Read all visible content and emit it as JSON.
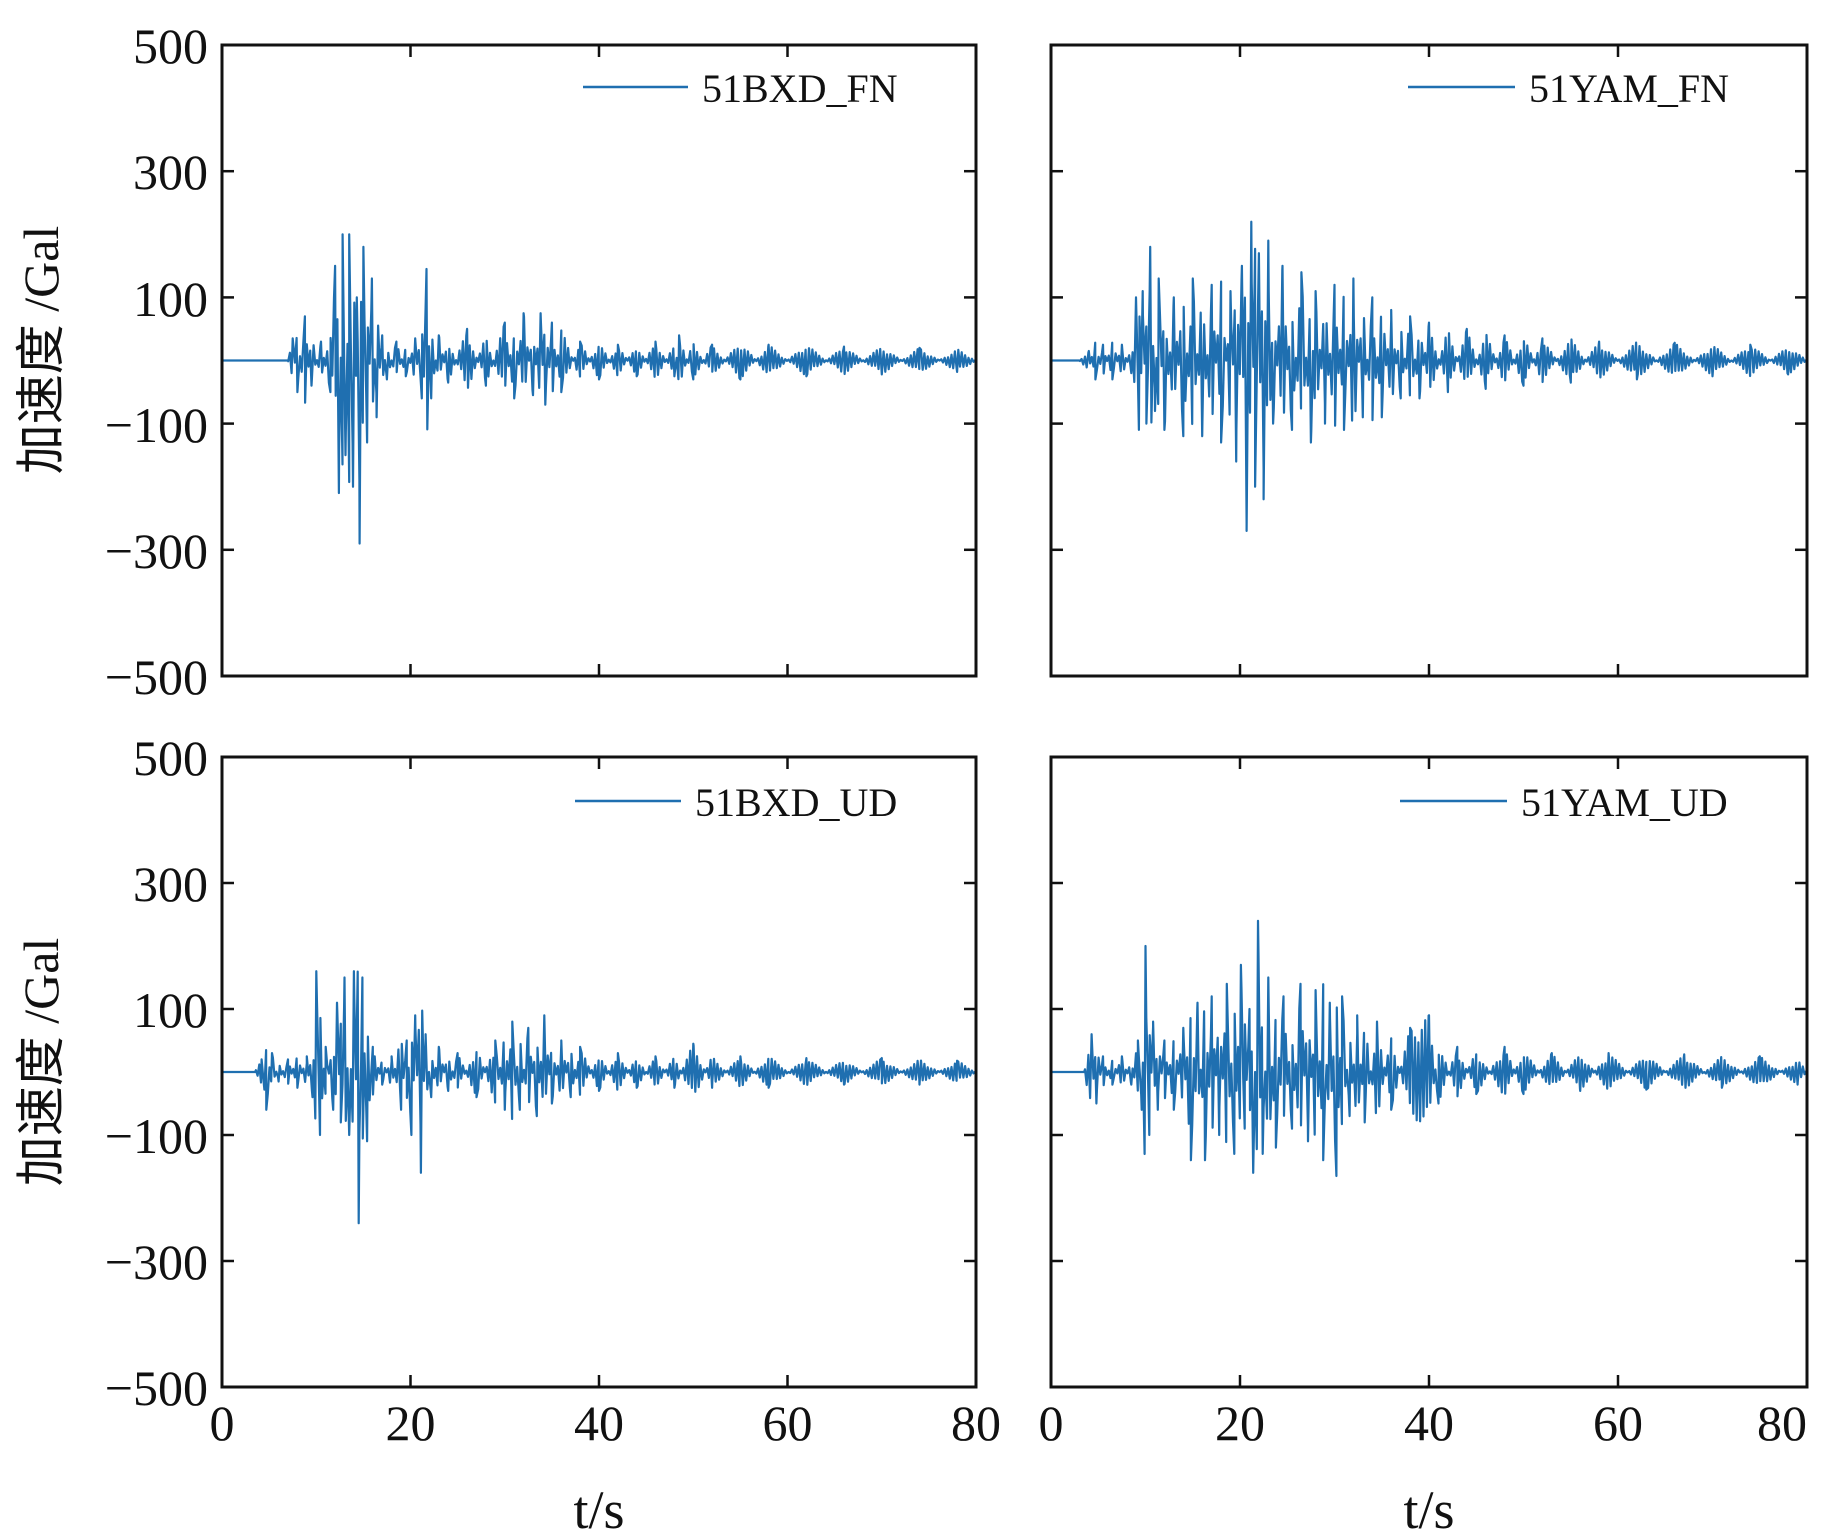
{
  "chart_data": [
    {
      "type": "line",
      "panel": "top-left",
      "series": [
        {
          "name": "51BXD_FN",
          "color": "#1f6fb0"
        }
      ],
      "legend": "top-right",
      "xlim": [
        0,
        80
      ],
      "ylim": [
        -500,
        500
      ],
      "xticks": [
        0,
        20,
        40,
        60,
        80
      ],
      "xticklabels": [],
      "yticks": [
        500,
        300,
        100,
        -100,
        -300,
        -500
      ],
      "yticklabels": [
        "500",
        "300",
        "100",
        "−100",
        "−300",
        "−500"
      ],
      "ylabel": "加速度 /Gal",
      "xlabel": "",
      "grid": false,
      "key_points": [
        [
          0,
          0
        ],
        [
          7,
          0
        ],
        [
          7.5,
          35
        ],
        [
          8,
          -50
        ],
        [
          8.8,
          70
        ],
        [
          9.5,
          -40
        ],
        [
          10.5,
          30
        ],
        [
          11.5,
          -50
        ],
        [
          12,
          150
        ],
        [
          12.4,
          -210
        ],
        [
          12.8,
          200
        ],
        [
          13.1,
          -150
        ],
        [
          13.5,
          200
        ],
        [
          13.9,
          -200
        ],
        [
          14.3,
          100
        ],
        [
          14.6,
          -290
        ],
        [
          15,
          180
        ],
        [
          15.4,
          -130
        ],
        [
          15.9,
          130
        ],
        [
          16.4,
          -90
        ],
        [
          17,
          40
        ],
        [
          17.5,
          -30
        ],
        [
          18.5,
          30
        ],
        [
          19.5,
          -25
        ],
        [
          20.5,
          35
        ],
        [
          21.2,
          -60
        ],
        [
          21.7,
          145
        ],
        [
          22.2,
          -60
        ],
        [
          23,
          40
        ],
        [
          24,
          -35
        ],
        [
          26,
          50
        ],
        [
          28,
          -40
        ],
        [
          30,
          60
        ],
        [
          31,
          -60
        ],
        [
          32,
          75
        ],
        [
          33,
          -55
        ],
        [
          33.8,
          75
        ],
        [
          34.3,
          -70
        ],
        [
          35,
          60
        ],
        [
          36,
          -50
        ],
        [
          38,
          30
        ],
        [
          40,
          -30
        ],
        [
          42,
          25
        ],
        [
          44,
          -25
        ],
        [
          46,
          30
        ],
        [
          48,
          -25
        ],
        [
          48.5,
          40
        ],
        [
          50,
          -30
        ],
        [
          52,
          25
        ],
        [
          55,
          -30
        ],
        [
          58,
          25
        ],
        [
          62,
          -25
        ],
        [
          66,
          22
        ],
        [
          70,
          -22
        ],
        [
          74,
          20
        ],
        [
          78,
          -18
        ],
        [
          80,
          0
        ]
      ]
    },
    {
      "type": "line",
      "panel": "top-right",
      "series": [
        {
          "name": "51YAM_FN",
          "color": "#1f6fb0"
        }
      ],
      "legend": "top-right",
      "xlim": [
        0,
        80
      ],
      "ylim": [
        -500,
        500
      ],
      "xticks": [
        0,
        20,
        40,
        60,
        80
      ],
      "xticklabels": [],
      "yticks": [
        500,
        300,
        100,
        -100,
        -300,
        -500
      ],
      "yticklabels": [],
      "xlabel": "",
      "grid": false,
      "key_points": [
        [
          0,
          0
        ],
        [
          3,
          0
        ],
        [
          4,
          15
        ],
        [
          4.7,
          -30
        ],
        [
          5.5,
          25
        ],
        [
          6.5,
          -30
        ],
        [
          7.5,
          25
        ],
        [
          8.5,
          -20
        ],
        [
          9,
          100
        ],
        [
          9.3,
          -110
        ],
        [
          9.7,
          110
        ],
        [
          10.1,
          -100
        ],
        [
          10.5,
          180
        ],
        [
          11,
          -80
        ],
        [
          11.4,
          130
        ],
        [
          12,
          -110
        ],
        [
          13,
          100
        ],
        [
          14,
          -120
        ],
        [
          15,
          130
        ],
        [
          16,
          -120
        ],
        [
          17,
          120
        ],
        [
          18,
          -130
        ],
        [
          19,
          110
        ],
        [
          19.6,
          -160
        ],
        [
          20.2,
          150
        ],
        [
          20.7,
          -270
        ],
        [
          21.2,
          220
        ],
        [
          21.6,
          -200
        ],
        [
          22,
          170
        ],
        [
          22.5,
          -220
        ],
        [
          23,
          190
        ],
        [
          23.5,
          -100
        ],
        [
          24.5,
          150
        ],
        [
          25.5,
          -110
        ],
        [
          26.5,
          140
        ],
        [
          27.5,
          -130
        ],
        [
          28,
          110
        ],
        [
          29,
          -100
        ],
        [
          30,
          120
        ],
        [
          31,
          -110
        ],
        [
          32,
          130
        ],
        [
          33,
          -90
        ],
        [
          34,
          100
        ],
        [
          35,
          -90
        ],
        [
          36,
          80
        ],
        [
          37,
          -60
        ],
        [
          38,
          70
        ],
        [
          39,
          -60
        ],
        [
          40,
          60
        ],
        [
          42,
          -50
        ],
        [
          44,
          50
        ],
        [
          46,
          -45
        ],
        [
          48,
          40
        ],
        [
          50,
          -40
        ],
        [
          52,
          35
        ],
        [
          55,
          -35
        ],
        [
          58,
          30
        ],
        [
          62,
          -30
        ],
        [
          66,
          28
        ],
        [
          70,
          -25
        ],
        [
          74,
          25
        ],
        [
          78,
          -22
        ],
        [
          80,
          0
        ]
      ]
    },
    {
      "type": "line",
      "panel": "bottom-left",
      "series": [
        {
          "name": "51BXD_UD",
          "color": "#1f6fb0"
        }
      ],
      "legend": "top-right",
      "xlim": [
        0,
        80
      ],
      "ylim": [
        -500,
        500
      ],
      "xticks": [
        0,
        20,
        40,
        60,
        80
      ],
      "xticklabels": [
        "0",
        "20",
        "40",
        "60",
        "80"
      ],
      "yticks": [
        500,
        300,
        100,
        -100,
        -300,
        -500
      ],
      "yticklabels": [
        "500",
        "300",
        "100",
        "−100",
        "−300",
        "−500"
      ],
      "ylabel": "加速度 /Gal",
      "xlabel": "t/s",
      "grid": false,
      "key_points": [
        [
          0,
          0
        ],
        [
          3.5,
          0
        ],
        [
          4.2,
          20
        ],
        [
          4.7,
          -60
        ],
        [
          5.3,
          30
        ],
        [
          6,
          -15
        ],
        [
          7,
          20
        ],
        [
          8,
          -25
        ],
        [
          9,
          25
        ],
        [
          9.6,
          -40
        ],
        [
          10,
          160
        ],
        [
          10.4,
          -100
        ],
        [
          11,
          40
        ],
        [
          11.8,
          -60
        ],
        [
          12.2,
          110
        ],
        [
          12.6,
          -80
        ],
        [
          13,
          150
        ],
        [
          13.5,
          -100
        ],
        [
          14,
          160
        ],
        [
          14.5,
          -240
        ],
        [
          14.9,
          150
        ],
        [
          15.4,
          -110
        ],
        [
          16,
          40
        ],
        [
          17,
          -20
        ],
        [
          18,
          25
        ],
        [
          19,
          -60
        ],
        [
          19.6,
          50
        ],
        [
          20.1,
          -100
        ],
        [
          20.5,
          90
        ],
        [
          21.1,
          -160
        ],
        [
          21.6,
          60
        ],
        [
          22.2,
          -40
        ],
        [
          23,
          40
        ],
        [
          24,
          -30
        ],
        [
          25,
          30
        ],
        [
          27,
          -40
        ],
        [
          29,
          50
        ],
        [
          30,
          -60
        ],
        [
          30.8,
          80
        ],
        [
          31.6,
          -60
        ],
        [
          32.5,
          70
        ],
        [
          33.4,
          -70
        ],
        [
          34.2,
          90
        ],
        [
          35,
          -50
        ],
        [
          36,
          50
        ],
        [
          37,
          -40
        ],
        [
          38,
          40
        ],
        [
          40,
          -30
        ],
        [
          42,
          30
        ],
        [
          44,
          -25
        ],
        [
          46,
          25
        ],
        [
          48,
          -25
        ],
        [
          50,
          45
        ],
        [
          52,
          -25
        ],
        [
          55,
          25
        ],
        [
          58,
          -25
        ],
        [
          62,
          22
        ],
        [
          66,
          -20
        ],
        [
          70,
          22
        ],
        [
          74,
          -20
        ],
        [
          78,
          18
        ],
        [
          80,
          0
        ]
      ]
    },
    {
      "type": "line",
      "panel": "bottom-right",
      "series": [
        {
          "name": "51YAM_UD",
          "color": "#1f6fb0"
        }
      ],
      "legend": "top-right",
      "xlim": [
        0,
        80
      ],
      "ylim": [
        -500,
        500
      ],
      "xticks": [
        0,
        20,
        40,
        60,
        80
      ],
      "xticklabels": [
        "0",
        "20",
        "40",
        "60",
        "80"
      ],
      "yticks": [
        500,
        300,
        100,
        -100,
        -300,
        -500
      ],
      "yticklabels": [],
      "xlabel": "t/s",
      "grid": false,
      "key_points": [
        [
          0,
          0
        ],
        [
          3.5,
          0
        ],
        [
          4.3,
          60
        ],
        [
          4.8,
          -50
        ],
        [
          5.5,
          25
        ],
        [
          6.5,
          -20
        ],
        [
          7.5,
          25
        ],
        [
          8.5,
          -20
        ],
        [
          9.2,
          50
        ],
        [
          9.6,
          -60
        ],
        [
          10,
          200
        ],
        [
          10.4,
          -100
        ],
        [
          10.8,
          80
        ],
        [
          11.3,
          -60
        ],
        [
          12,
          50
        ],
        [
          13,
          -60
        ],
        [
          14,
          70
        ],
        [
          14.8,
          -140
        ],
        [
          15.5,
          110
        ],
        [
          16.3,
          -140
        ],
        [
          17,
          120
        ],
        [
          17.8,
          -100
        ],
        [
          18.6,
          140
        ],
        [
          19.4,
          -130
        ],
        [
          20.1,
          170
        ],
        [
          20.5,
          -90
        ],
        [
          21,
          100
        ],
        [
          21.4,
          -160
        ],
        [
          21.9,
          240
        ],
        [
          22.4,
          -130
        ],
        [
          23,
          150
        ],
        [
          23.8,
          -120
        ],
        [
          24.6,
          120
        ],
        [
          25.5,
          -90
        ],
        [
          26.4,
          140
        ],
        [
          27.2,
          -110
        ],
        [
          28,
          130
        ],
        [
          28.8,
          -140
        ],
        [
          29.5,
          110
        ],
        [
          30.2,
          -165
        ],
        [
          30.8,
          120
        ],
        [
          31.6,
          -70
        ],
        [
          32.4,
          90
        ],
        [
          33.2,
          -80
        ],
        [
          34.5,
          80
        ],
        [
          36,
          -60
        ],
        [
          38,
          70
        ],
        [
          40,
          90
        ],
        [
          41,
          -50
        ],
        [
          43,
          40
        ],
        [
          45,
          -35
        ],
        [
          48,
          40
        ],
        [
          50,
          -35
        ],
        [
          53,
          30
        ],
        [
          56,
          -30
        ],
        [
          59,
          30
        ],
        [
          63,
          -28
        ],
        [
          67,
          28
        ],
        [
          71,
          -25
        ],
        [
          75,
          25
        ],
        [
          79,
          -20
        ],
        [
          80,
          0
        ]
      ]
    }
  ]
}
